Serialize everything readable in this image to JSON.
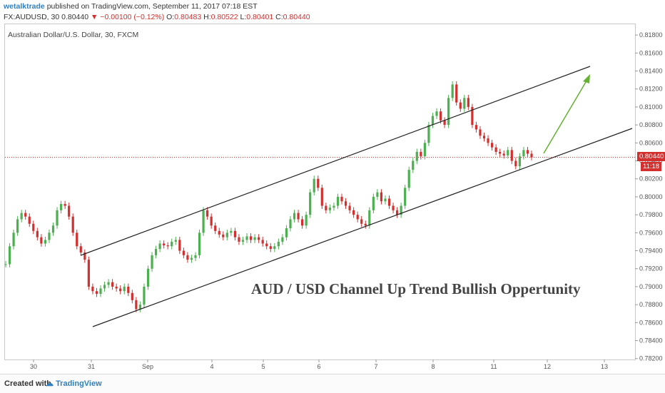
{
  "header": {
    "author": "wetalktrade",
    "published_text": "published on TradingView.com, September 11, 2017 07:18 EST",
    "symbol": "FX:AUDUSD, 30",
    "last": "0.80440",
    "change": "▼ −0.00100 (−0.12%)",
    "o_label": "O:",
    "o_val": "0.80483",
    "h_label": "H:",
    "h_val": "0.80522",
    "l_label": "L:",
    "l_val": "0.80401",
    "c_label": "C:",
    "c_val": "0.80440"
  },
  "footer": {
    "created_with": "Created with",
    "brand": "TradingView"
  },
  "price_tag": {
    "price": "0.80440",
    "countdown": "11:18"
  },
  "colors": {
    "up": "#4caf50",
    "down": "#d32f2f",
    "arrow": "#66b032",
    "channel": "#222222"
  },
  "chart_data": {
    "type": "line",
    "title": "Australian Dollar/U.S. Dollar, 30, FXCM",
    "annotation": "AUD / USD  Channel Up Trend Bullish Oppertunity",
    "x_ticks": [
      "30",
      "31",
      "Sep",
      "4",
      "5",
      "6",
      "7",
      "8",
      "11",
      "12",
      "13"
    ],
    "y_ticks": [
      "0.81800",
      "0.81600",
      "0.81400",
      "0.81200",
      "0.81000",
      "0.80800",
      "0.80600",
      "0.80400",
      "0.80200",
      "0.80000",
      "0.79800",
      "0.79600",
      "0.79400",
      "0.79200",
      "0.79000",
      "0.78800",
      "0.78600",
      "0.78400",
      "0.78200"
    ],
    "ylim": [
      0.7819,
      0.8192
    ],
    "last_price": 0.8044,
    "series": [
      {
        "values": [
          0.7925,
          0.7945,
          0.796,
          0.7975,
          0.7982,
          0.7978,
          0.797,
          0.7962,
          0.7955,
          0.7948,
          0.7952,
          0.796,
          0.7968,
          0.7985,
          0.7992,
          0.799,
          0.7978,
          0.796,
          0.7945,
          0.7938,
          0.793,
          0.79,
          0.7895,
          0.7892,
          0.7898,
          0.7902,
          0.7905,
          0.79,
          0.7898,
          0.7895,
          0.79,
          0.7893,
          0.7885,
          0.7875,
          0.788,
          0.79,
          0.792,
          0.7935,
          0.7942,
          0.7948,
          0.7946,
          0.7945,
          0.795,
          0.7952,
          0.794,
          0.7935,
          0.793,
          0.7932,
          0.7935,
          0.796,
          0.7985,
          0.7978,
          0.7968,
          0.7962,
          0.7958,
          0.7955,
          0.796,
          0.7962,
          0.7955,
          0.795,
          0.7952,
          0.7956,
          0.7952,
          0.7955,
          0.7952,
          0.7948,
          0.7945,
          0.7942,
          0.7945,
          0.795,
          0.7955,
          0.7965,
          0.7975,
          0.7982,
          0.7975,
          0.7968,
          0.798,
          0.8005,
          0.802,
          0.801,
          0.799,
          0.7985,
          0.7988,
          0.799,
          0.8,
          0.7995,
          0.799,
          0.7985,
          0.798,
          0.7975,
          0.797,
          0.7968,
          0.7985,
          0.8,
          0.8005,
          0.7995,
          0.7998,
          0.799,
          0.7985,
          0.798,
          0.799,
          0.801,
          0.803,
          0.804,
          0.805,
          0.8045,
          0.806,
          0.808,
          0.809,
          0.8095,
          0.8085,
          0.808,
          0.811,
          0.8125,
          0.8105,
          0.8098,
          0.811,
          0.81,
          0.808,
          0.8075,
          0.8068,
          0.8065,
          0.806,
          0.8055,
          0.805,
          0.8048,
          0.8046,
          0.8052,
          0.804,
          0.8034,
          0.8045,
          0.8052,
          0.8048,
          0.8044
        ]
      }
    ]
  }
}
